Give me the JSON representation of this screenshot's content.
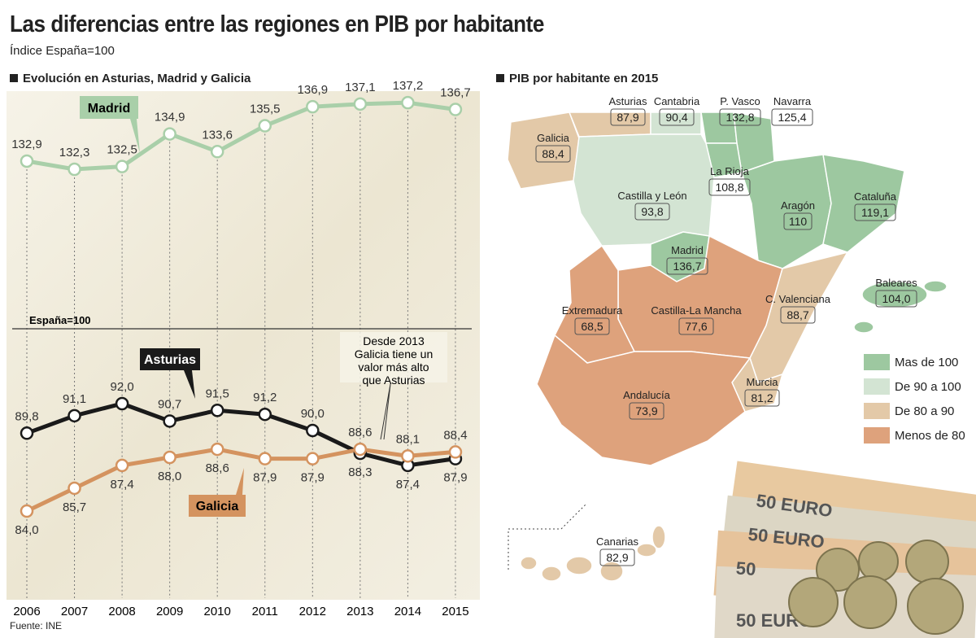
{
  "header": {
    "title": "Las diferencias entre las regiones en PIB por habitante",
    "subtitle": "Índice España=100"
  },
  "source": "Fuente: INE",
  "chart_data": {
    "type": "line",
    "title": "Evolución en Asturias, Madrid y Galicia",
    "x": [
      "2006",
      "2007",
      "2008",
      "2009",
      "2010",
      "2011",
      "2012",
      "2013",
      "2014",
      "2015"
    ],
    "reference_line": {
      "label": "España=100",
      "value": 100
    },
    "axis_break": true,
    "grid": "vertical dotted",
    "series": [
      {
        "name": "Madrid",
        "color": "#a9cfa9",
        "values": [
          132.9,
          132.3,
          132.5,
          134.9,
          133.6,
          135.5,
          136.9,
          137.1,
          137.2,
          136.7
        ],
        "value_labels": [
          "132,9",
          "132,3",
          "132,5",
          "134,9",
          "133,6",
          "135,5",
          "136,9",
          "137,1",
          "137,2",
          "136,7"
        ]
      },
      {
        "name": "Asturias",
        "color": "#1a1a1a",
        "values": [
          89.8,
          91.1,
          92.0,
          90.7,
          91.5,
          91.2,
          90.0,
          88.3,
          87.4,
          87.9
        ],
        "value_labels": [
          "89,8",
          "91,1",
          "92,0",
          "90,7",
          "91,5",
          "91,2",
          "90,0",
          "88,3",
          "87,4",
          "87,9"
        ]
      },
      {
        "name": "Galicia",
        "color": "#d4935f",
        "values": [
          84.0,
          85.7,
          87.4,
          88.0,
          88.6,
          87.9,
          87.9,
          88.6,
          88.1,
          88.4
        ],
        "value_labels": [
          "84,0",
          "85,7",
          "87,4",
          "88,0",
          "88,6",
          "87,9",
          "87,9",
          "88,6",
          "88,1",
          "88,4"
        ]
      }
    ],
    "annotation": "Desde 2013 Galicia tiene un valor más alto que Asturias"
  },
  "map": {
    "title": "PIB por habitante en 2015",
    "colors": {
      "mas100": "#9dc8a0",
      "90a100": "#d3e4d3",
      "80a90": "#e3c9a8",
      "menos80": "#dea27c"
    },
    "legend": [
      {
        "key": "mas100",
        "label": "Mas de 100"
      },
      {
        "key": "90a100",
        "label": "De 90 a 100"
      },
      {
        "key": "80a90",
        "label": "De 80 a 90"
      },
      {
        "key": "menos80",
        "label": "Menos de 80"
      }
    ],
    "regions": [
      {
        "name": "Galicia",
        "value": "88,4"
      },
      {
        "name": "Asturias",
        "value": "87,9"
      },
      {
        "name": "Cantabria",
        "value": "90,4"
      },
      {
        "name": "P. Vasco",
        "value": "132,8"
      },
      {
        "name": "Navarra",
        "value": "125,4"
      },
      {
        "name": "La Rioja",
        "value": "108,8"
      },
      {
        "name": "Castilla y León",
        "value": "93,8"
      },
      {
        "name": "Aragón",
        "value": "110"
      },
      {
        "name": "Cataluña",
        "value": "119,1"
      },
      {
        "name": "Madrid",
        "value": "136,7"
      },
      {
        "name": "Baleares",
        "value": "104,0"
      },
      {
        "name": "Extremadura",
        "value": "68,5"
      },
      {
        "name": "Castilla-La Mancha",
        "value": "77,6"
      },
      {
        "name": "C. Valenciana",
        "value": "88,7"
      },
      {
        "name": "Andalucía",
        "value": "73,9"
      },
      {
        "name": "Murcia",
        "value": "81,2"
      },
      {
        "name": "Canarias",
        "value": "82,9"
      }
    ]
  }
}
